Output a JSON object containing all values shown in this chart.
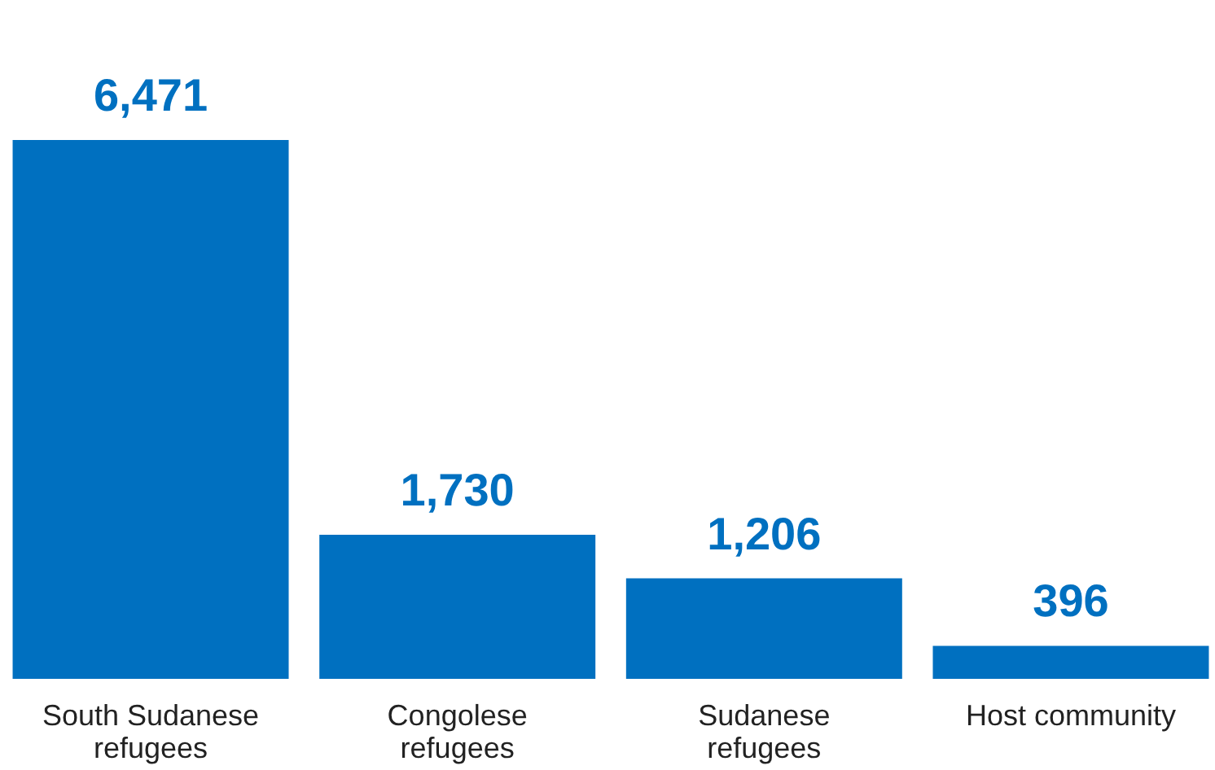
{
  "chart_data": {
    "type": "bar",
    "categories": [
      "South Sudanese refugees",
      "Congolese refugees",
      "Sudanese refugees",
      "Host community"
    ],
    "values": [
      6471,
      1730,
      1206,
      396
    ],
    "color": "#0070c0",
    "value_labels": [
      "6,471",
      "1,730",
      "1,206",
      "396"
    ]
  }
}
